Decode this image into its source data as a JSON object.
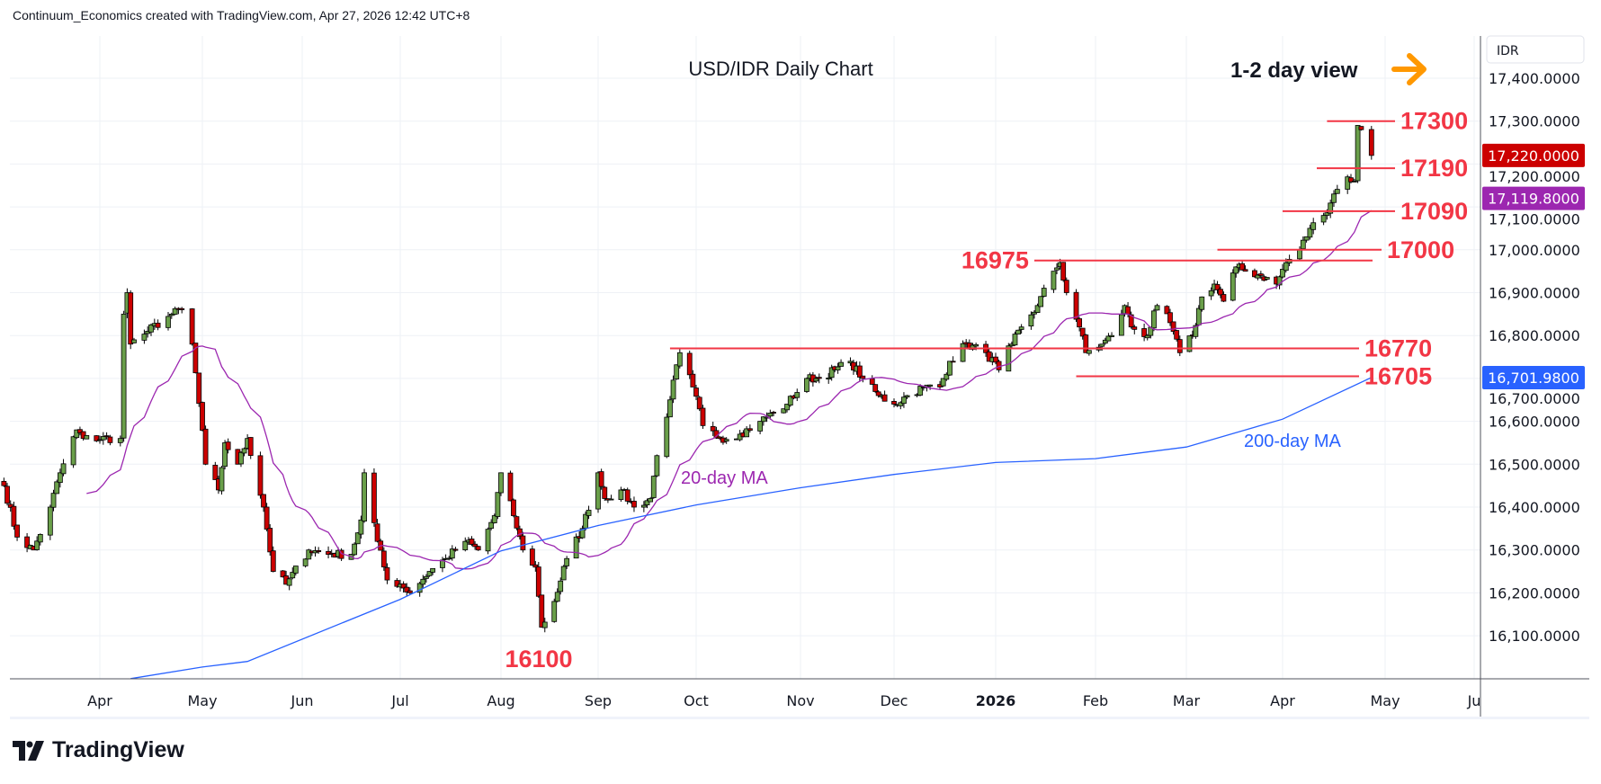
{
  "header": {
    "attribution": "Continuum_Economics created with TradingView.com, Apr 27, 2026 12:42 UTC+8"
  },
  "branding": {
    "logo_text": "TradingView"
  },
  "chart_data": {
    "type": "candlestick",
    "title": "USD/IDR Daily Chart",
    "subtitle": "1-2 day view",
    "currency": "IDR",
    "ylim": [
      16000,
      17450
    ],
    "y_ticks": [
      17400,
      17300,
      17200,
      17100,
      17000,
      16900,
      16800,
      16700,
      16600,
      16500,
      16400,
      16300,
      16200,
      16100
    ],
    "y_tick_labels": [
      "17,400.0000",
      "17,300.0000",
      "17,200.0000",
      "17,100.0000",
      "17,000.0000",
      "16,900.0000",
      "16,800.0000",
      "16,700.0000",
      "16,600.0000",
      "16,500.0000",
      "16,400.0000",
      "16,300.0000",
      "16,200.0000",
      "16,100.0000"
    ],
    "x_ticks": [
      {
        "label": "Apr",
        "month": "2025-04"
      },
      {
        "label": "May",
        "month": "2025-05"
      },
      {
        "label": "Jun",
        "month": "2025-06"
      },
      {
        "label": "Jul",
        "month": "2025-07"
      },
      {
        "label": "Aug",
        "month": "2025-08"
      },
      {
        "label": "Sep",
        "month": "2025-09"
      },
      {
        "label": "Oct",
        "month": "2025-10"
      },
      {
        "label": "Nov",
        "month": "2025-11"
      },
      {
        "label": "Dec",
        "month": "2025-12"
      },
      {
        "label": "2026",
        "month": "2026-01"
      },
      {
        "label": "Feb",
        "month": "2026-02"
      },
      {
        "label": "Mar",
        "month": "2026-03"
      },
      {
        "label": "Apr",
        "month": "2026-04"
      },
      {
        "label": "May",
        "month": "2026-05"
      },
      {
        "label": "Ju",
        "month": "2026-06"
      }
    ],
    "close_anchors": [
      [
        "2025-03-03",
        16450
      ],
      [
        "2025-03-07",
        16330
      ],
      [
        "2025-03-12",
        16300
      ],
      [
        "2025-03-17",
        16400
      ],
      [
        "2025-03-20",
        16480
      ],
      [
        "2025-03-25",
        16580
      ],
      [
        "2025-03-27",
        16560
      ],
      [
        "2025-04-07",
        16560
      ],
      [
        "2025-04-08",
        16850
      ],
      [
        "2025-04-09",
        16900
      ],
      [
        "2025-04-10",
        16780
      ],
      [
        "2025-04-15",
        16810
      ],
      [
        "2025-04-22",
        16850
      ],
      [
        "2025-04-25",
        16860
      ],
      [
        "2025-04-28",
        16780
      ],
      [
        "2025-05-02",
        16500
      ],
      [
        "2025-05-06",
        16440
      ],
      [
        "2025-05-08",
        16550
      ],
      [
        "2025-05-12",
        16500
      ],
      [
        "2025-05-15",
        16560
      ],
      [
        "2025-05-20",
        16400
      ],
      [
        "2025-05-23",
        16250
      ],
      [
        "2025-05-27",
        16220
      ],
      [
        "2025-06-03",
        16300
      ],
      [
        "2025-06-10",
        16290
      ],
      [
        "2025-06-16",
        16290
      ],
      [
        "2025-06-19",
        16370
      ],
      [
        "2025-06-20",
        16480
      ],
      [
        "2025-06-24",
        16320
      ],
      [
        "2025-06-27",
        16230
      ],
      [
        "2025-07-01",
        16220
      ],
      [
        "2025-07-04",
        16200
      ],
      [
        "2025-07-10",
        16250
      ],
      [
        "2025-07-15",
        16280
      ],
      [
        "2025-07-21",
        16320
      ],
      [
        "2025-07-25",
        16300
      ],
      [
        "2025-07-30",
        16380
      ],
      [
        "2025-08-01",
        16480
      ],
      [
        "2025-08-05",
        16380
      ],
      [
        "2025-08-08",
        16300
      ],
      [
        "2025-08-12",
        16260
      ],
      [
        "2025-08-14",
        16120
      ],
      [
        "2025-08-18",
        16180
      ],
      [
        "2025-08-22",
        16280
      ],
      [
        "2025-08-27",
        16350
      ],
      [
        "2025-09-01",
        16480
      ],
      [
        "2025-09-03",
        16420
      ],
      [
        "2025-09-08",
        16440
      ],
      [
        "2025-09-12",
        16400
      ],
      [
        "2025-09-17",
        16420
      ],
      [
        "2025-09-19",
        16520
      ],
      [
        "2025-09-23",
        16650
      ],
      [
        "2025-09-26",
        16760
      ],
      [
        "2025-09-30",
        16680
      ],
      [
        "2025-10-03",
        16590
      ],
      [
        "2025-10-08",
        16560
      ],
      [
        "2025-10-14",
        16570
      ],
      [
        "2025-10-20",
        16600
      ],
      [
        "2025-10-24",
        16620
      ],
      [
        "2025-10-28",
        16640
      ],
      [
        "2025-11-03",
        16700
      ],
      [
        "2025-11-07",
        16700
      ],
      [
        "2025-11-12",
        16720
      ],
      [
        "2025-11-17",
        16740
      ],
      [
        "2025-11-21",
        16700
      ],
      [
        "2025-11-26",
        16660
      ],
      [
        "2025-12-01",
        16640
      ],
      [
        "2025-12-05",
        16660
      ],
      [
        "2025-12-10",
        16680
      ],
      [
        "2025-12-15",
        16680
      ],
      [
        "2025-12-18",
        16740
      ],
      [
        "2025-12-23",
        16780
      ],
      [
        "2025-12-29",
        16760
      ],
      [
        "2026-01-02",
        16720
      ],
      [
        "2026-01-06",
        16780
      ],
      [
        "2026-01-09",
        16820
      ],
      [
        "2026-01-14",
        16870
      ],
      [
        "2026-01-19",
        16950
      ],
      [
        "2026-01-21",
        16970
      ],
      [
        "2026-01-23",
        16900
      ],
      [
        "2026-01-27",
        16820
      ],
      [
        "2026-01-29",
        16760
      ],
      [
        "2026-02-03",
        16780
      ],
      [
        "2026-02-06",
        16800
      ],
      [
        "2026-02-10",
        16870
      ],
      [
        "2026-02-12",
        16820
      ],
      [
        "2026-02-17",
        16800
      ],
      [
        "2026-02-20",
        16870
      ],
      [
        "2026-02-24",
        16830
      ],
      [
        "2026-02-27",
        16760
      ],
      [
        "2026-03-03",
        16800
      ],
      [
        "2026-03-06",
        16890
      ],
      [
        "2026-03-10",
        16920
      ],
      [
        "2026-03-13",
        16880
      ],
      [
        "2026-03-17",
        16960
      ],
      [
        "2026-03-20",
        16950
      ],
      [
        "2026-03-25",
        16940
      ],
      [
        "2026-03-30",
        16920
      ],
      [
        "2026-04-02",
        16970
      ],
      [
        "2026-04-06",
        17000
      ],
      [
        "2026-04-09",
        17050
      ],
      [
        "2026-04-13",
        17080
      ],
      [
        "2026-04-16",
        17130
      ],
      [
        "2026-04-20",
        17170
      ],
      [
        "2026-04-22",
        17160
      ],
      [
        "2026-04-23",
        17290
      ],
      [
        "2026-04-24",
        17280
      ],
      [
        "2026-04-27",
        17220
      ]
    ],
    "ma200_anchors": [
      [
        "2025-04-10",
        16000
      ],
      [
        "2025-05-01",
        16027
      ],
      [
        "2025-05-15",
        16040
      ],
      [
        "2025-07-01",
        16185
      ],
      [
        "2025-08-01",
        16298
      ],
      [
        "2025-09-01",
        16357
      ],
      [
        "2025-10-01",
        16405
      ],
      [
        "2025-11-01",
        16445
      ],
      [
        "2025-12-01",
        16476
      ],
      [
        "2026-01-01",
        16504
      ],
      [
        "2026-02-01",
        16513
      ],
      [
        "2026-03-01",
        16540
      ],
      [
        "2026-04-01",
        16605
      ],
      [
        "2026-04-27",
        16702
      ]
    ],
    "levels": [
      {
        "value": 17300,
        "label": "17300",
        "from": "2026-04-14"
      },
      {
        "value": 17190,
        "label": "17190",
        "from": "2026-04-11"
      },
      {
        "value": 17090,
        "label": "17090",
        "from": "2026-04-01"
      },
      {
        "value": 17000,
        "label": "17000",
        "from": "2026-03-11"
      },
      {
        "value": 16975,
        "label": "16975",
        "from": "2026-01-13"
      },
      {
        "value": 16770,
        "label": "16770",
        "from": "2025-09-23"
      },
      {
        "value": 16705,
        "label": "16705",
        "from": "2026-01-26"
      }
    ],
    "annotations": {
      "low_label": "16100",
      "ma20_label": "20-day MA",
      "ma200_label": "200-day MA"
    },
    "price_badges": [
      {
        "value": 17220,
        "label": "17,220.0000",
        "color": "#cc0000"
      },
      {
        "value": 17119.8,
        "label": "17,119.8000",
        "color": "#9c27b0"
      },
      {
        "value": 16701.98,
        "label": "16,701.9800",
        "color": "#2962ff"
      }
    ],
    "colors": {
      "up": "#6a9f4a",
      "down": "#cc0000",
      "ma20": "#9c27b0",
      "ma200": "#2962ff",
      "levels": "#f23645",
      "arrow": "#ff9800"
    }
  }
}
